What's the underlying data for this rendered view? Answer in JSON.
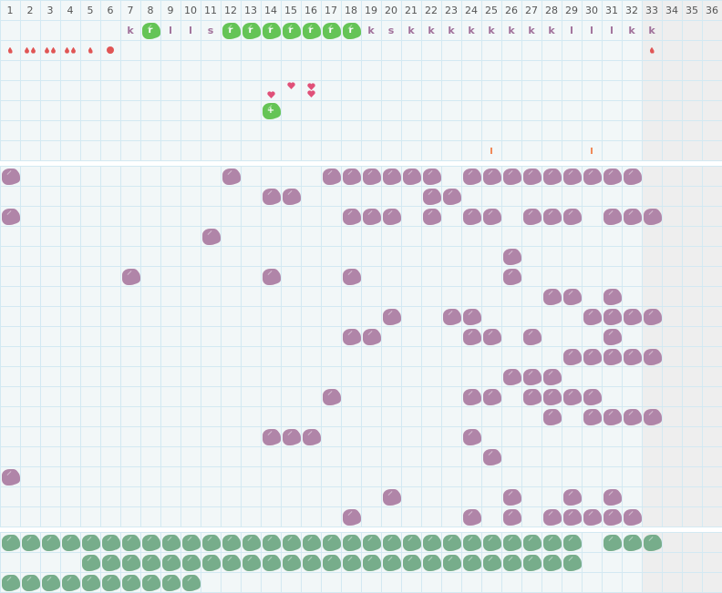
{
  "columns": [
    "1",
    "2",
    "3",
    "4",
    "5",
    "6",
    "7",
    "8",
    "9",
    "10",
    "11",
    "12",
    "13",
    "14",
    "15",
    "16",
    "17",
    "18",
    "19",
    "20",
    "21",
    "22",
    "23",
    "24",
    "25",
    "26",
    "27",
    "28",
    "29",
    "30",
    "31",
    "32",
    "33",
    "34",
    "35",
    "36"
  ],
  "colors": {
    "purple": "#b085a8",
    "green": "#65c456",
    "teal": "#77ad8b",
    "drop": "#e05555",
    "heart": "#e05078",
    "tick": "#f08a5a",
    "disabled_columns_bg": "#eeeeee"
  },
  "top": {
    "marks_row": [
      {
        "col": 7,
        "mark": "k"
      },
      {
        "col": 8,
        "mark": "r",
        "style": "green-blob"
      },
      {
        "col": 9,
        "mark": "l"
      },
      {
        "col": 10,
        "mark": "l"
      },
      {
        "col": 11,
        "mark": "s"
      },
      {
        "col": 12,
        "mark": "r",
        "style": "green-blob"
      },
      {
        "col": 13,
        "mark": "r",
        "style": "green-blob"
      },
      {
        "col": 14,
        "mark": "r",
        "style": "green-blob"
      },
      {
        "col": 15,
        "mark": "r",
        "style": "green-blob"
      },
      {
        "col": 16,
        "mark": "r",
        "style": "green-blob"
      },
      {
        "col": 17,
        "mark": "r",
        "style": "green-blob"
      },
      {
        "col": 18,
        "mark": "r",
        "style": "green-blob"
      },
      {
        "col": 19,
        "mark": "k"
      },
      {
        "col": 20,
        "mark": "s"
      },
      {
        "col": 21,
        "mark": "k"
      },
      {
        "col": 22,
        "mark": "k"
      },
      {
        "col": 23,
        "mark": "k"
      },
      {
        "col": 24,
        "mark": "k"
      },
      {
        "col": 25,
        "mark": "k"
      },
      {
        "col": 26,
        "mark": "k"
      },
      {
        "col": 27,
        "mark": "k"
      },
      {
        "col": 28,
        "mark": "k"
      },
      {
        "col": 29,
        "mark": "l"
      },
      {
        "col": 30,
        "mark": "l"
      },
      {
        "col": 31,
        "mark": "l"
      },
      {
        "col": 32,
        "mark": "k"
      },
      {
        "col": 33,
        "mark": "k"
      }
    ],
    "drops_row": [
      {
        "col": 1,
        "icon": "drop",
        "count": 1
      },
      {
        "col": 2,
        "icon": "drop",
        "count": 2
      },
      {
        "col": 3,
        "icon": "drop",
        "count": 2
      },
      {
        "col": 4,
        "icon": "drop",
        "count": 2
      },
      {
        "col": 5,
        "icon": "drop",
        "count": 1
      },
      {
        "col": 6,
        "icon": "circle",
        "count": 1
      },
      {
        "col": 33,
        "icon": "drop",
        "count": 1
      }
    ],
    "hearts_row": [
      {
        "col": 14,
        "count": 1,
        "level": "low"
      },
      {
        "col": 15,
        "count": 1,
        "level": "high"
      },
      {
        "col": 16,
        "count": 2,
        "level": "mid"
      }
    ],
    "plus_blob": {
      "col": 14,
      "mark": "+"
    },
    "ticks_row": [
      {
        "col": 25
      },
      {
        "col": 30
      }
    ]
  },
  "middle_rows": [
    [
      1,
      12,
      17,
      18,
      19,
      20,
      21,
      22,
      24,
      25,
      26,
      27,
      28,
      29,
      30,
      31,
      32
    ],
    [
      14,
      15,
      22,
      23
    ],
    [
      1,
      18,
      19,
      20,
      22,
      24,
      25,
      27,
      28,
      29,
      31,
      32,
      33
    ],
    [
      11
    ],
    [
      26
    ],
    [
      7,
      14,
      18,
      26
    ],
    [
      28,
      29,
      31
    ],
    [
      20,
      23,
      24,
      30,
      31,
      32,
      33
    ],
    [
      18,
      19,
      24,
      25,
      27,
      31
    ],
    [
      29,
      30,
      31,
      32,
      33
    ],
    [
      26,
      27,
      28
    ],
    [
      17,
      24,
      25,
      27,
      28,
      29,
      30
    ],
    [
      28,
      30,
      31,
      32,
      33
    ],
    [
      14,
      15,
      16,
      24
    ],
    [
      25
    ],
    [
      1
    ],
    [
      20,
      26,
      29,
      31
    ],
    [
      18,
      24,
      26,
      28,
      29,
      30,
      31,
      32
    ]
  ],
  "bottom_rows": [
    [
      1,
      2,
      3,
      4,
      5,
      6,
      7,
      8,
      9,
      10,
      11,
      12,
      13,
      14,
      15,
      16,
      17,
      18,
      19,
      20,
      21,
      22,
      23,
      24,
      25,
      26,
      27,
      28,
      29,
      31,
      32,
      33
    ],
    [
      5,
      6,
      7,
      8,
      9,
      10,
      11,
      12,
      13,
      14,
      15,
      16,
      17,
      18,
      19,
      20,
      21,
      22,
      23,
      24,
      25,
      26,
      27,
      28,
      29
    ],
    [
      1,
      2,
      3,
      4,
      5,
      6,
      7,
      8,
      9,
      10
    ]
  ]
}
